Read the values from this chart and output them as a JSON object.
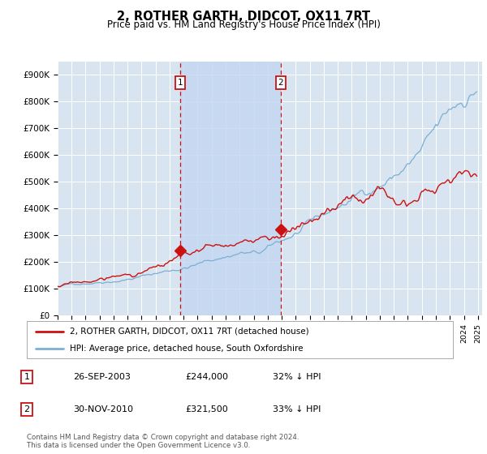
{
  "title": "2, ROTHER GARTH, DIDCOT, OX11 7RT",
  "subtitle": "Price paid vs. HM Land Registry's House Price Index (HPI)",
  "ylim": [
    0,
    950000
  ],
  "yticks": [
    0,
    100000,
    200000,
    300000,
    400000,
    500000,
    600000,
    700000,
    800000,
    900000
  ],
  "ytick_labels": [
    "£0",
    "£100K",
    "£200K",
    "£300K",
    "£400K",
    "£500K",
    "£600K",
    "£700K",
    "£800K",
    "£900K"
  ],
  "plot_bg_color": "#d8e4f0",
  "fig_bg_color": "#ffffff",
  "hpi_color": "#7bafd4",
  "price_color": "#cc1111",
  "shade_color": "#c5d8f0",
  "legend_label1": "2, ROTHER GARTH, DIDCOT, OX11 7RT (detached house)",
  "legend_label2": "HPI: Average price, detached house, South Oxfordshire",
  "table_row1": [
    "1",
    "26-SEP-2003",
    "£244,000",
    "32% ↓ HPI"
  ],
  "table_row2": [
    "2",
    "30-NOV-2010",
    "£321,500",
    "33% ↓ HPI"
  ],
  "footer": "Contains HM Land Registry data © Crown copyright and database right 2024.\nThis data is licensed under the Open Government Licence v3.0.",
  "sale1_year": 2003.75,
  "sale2_year": 2010.917,
  "marker1_price": 244000,
  "marker2_price": 321500,
  "xstart_year": 1995,
  "xend_year": 2025
}
